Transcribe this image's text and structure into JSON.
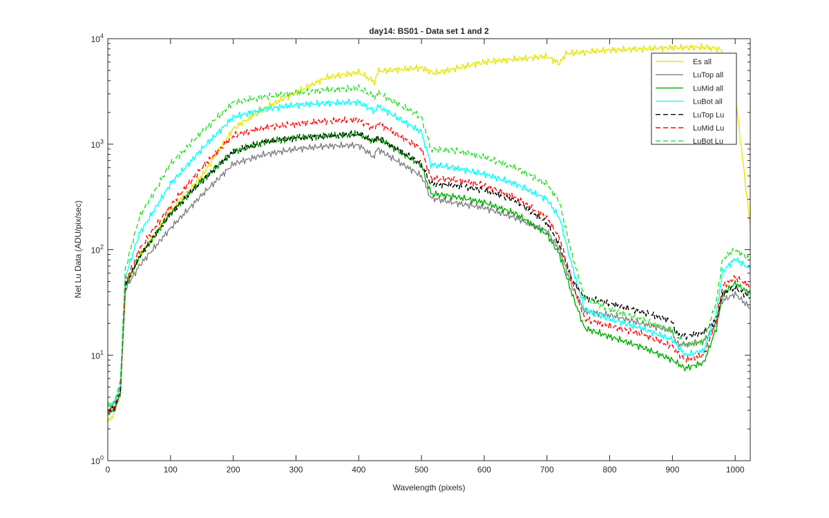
{
  "chart_data": {
    "type": "line",
    "title": "day14: BS01 - Data set 1 and 2",
    "xlabel": "Wavelength (pixels)",
    "ylabel": "Net Lu Data (ADU/pix/sec)",
    "xlim": [
      0,
      1024
    ],
    "ylim": [
      1,
      10000
    ],
    "yscale": "log",
    "grid": false,
    "legend_position": "top-right",
    "x_ticks": [
      0,
      100,
      200,
      300,
      400,
      500,
      600,
      700,
      800,
      900,
      1000
    ],
    "x_tick_labels": [
      "0",
      "100",
      "200",
      "300",
      "400",
      "500",
      "600",
      "700",
      "800",
      "900",
      "1000"
    ],
    "y_ticks": [
      1,
      10,
      100,
      1000,
      10000
    ],
    "y_tick_labels": [
      {
        "base": "10",
        "exp": "0"
      },
      {
        "base": "10",
        "exp": "1"
      },
      {
        "base": "10",
        "exp": "2"
      },
      {
        "base": "10",
        "exp": "3"
      },
      {
        "base": "10",
        "exp": "4"
      }
    ],
    "series": [
      {
        "name": "Es  all",
        "color": "#e6e600",
        "dash": "solid",
        "points": [
          [
            0,
            2.3
          ],
          [
            10,
            2.8
          ],
          [
            20,
            4.5
          ],
          [
            28,
            45
          ],
          [
            50,
            85
          ],
          [
            100,
            230
          ],
          [
            150,
            500
          ],
          [
            200,
            1400
          ],
          [
            250,
            2200
          ],
          [
            300,
            3100
          ],
          [
            350,
            4300
          ],
          [
            400,
            4800
          ],
          [
            425,
            3900
          ],
          [
            430,
            4900
          ],
          [
            500,
            5300
          ],
          [
            520,
            4700
          ],
          [
            600,
            6000
          ],
          [
            700,
            6800
          ],
          [
            720,
            5800
          ],
          [
            730,
            7200
          ],
          [
            800,
            7800
          ],
          [
            900,
            8200
          ],
          [
            950,
            8300
          ],
          [
            975,
            8000
          ],
          [
            990,
            6000
          ],
          [
            1000,
            3000
          ],
          [
            1010,
            900
          ],
          [
            1024,
            170
          ]
        ]
      },
      {
        "name": "LuTop  all",
        "color": "#808080",
        "dash": "solid",
        "points": [
          [
            0,
            2.8
          ],
          [
            10,
            3.0
          ],
          [
            20,
            4.2
          ],
          [
            28,
            42
          ],
          [
            50,
            70
          ],
          [
            100,
            160
          ],
          [
            150,
            330
          ],
          [
            200,
            650
          ],
          [
            250,
            800
          ],
          [
            300,
            900
          ],
          [
            350,
            960
          ],
          [
            400,
            980
          ],
          [
            425,
            750
          ],
          [
            430,
            900
          ],
          [
            500,
            500
          ],
          [
            515,
            310
          ],
          [
            550,
            280
          ],
          [
            600,
            250
          ],
          [
            650,
            200
          ],
          [
            700,
            150
          ],
          [
            720,
            100
          ],
          [
            740,
            45
          ],
          [
            760,
            26
          ],
          [
            800,
            24
          ],
          [
            850,
            20
          ],
          [
            900,
            17
          ],
          [
            905,
            13
          ],
          [
            920,
            12.5
          ],
          [
            950,
            13.5
          ],
          [
            970,
            20
          ],
          [
            980,
            33
          ],
          [
            1000,
            38
          ],
          [
            1024,
            28
          ]
        ]
      },
      {
        "name": "LuMid  all",
        "color": "#00aa00",
        "dash": "solid",
        "points": [
          [
            0,
            2.9
          ],
          [
            10,
            3.0
          ],
          [
            20,
            4.5
          ],
          [
            28,
            45
          ],
          [
            50,
            85
          ],
          [
            100,
            220
          ],
          [
            150,
            450
          ],
          [
            200,
            850
          ],
          [
            250,
            1050
          ],
          [
            300,
            1150
          ],
          [
            350,
            1200
          ],
          [
            400,
            1250
          ],
          [
            425,
            1050
          ],
          [
            430,
            1150
          ],
          [
            500,
            630
          ],
          [
            515,
            340
          ],
          [
            550,
            320
          ],
          [
            600,
            280
          ],
          [
            650,
            220
          ],
          [
            700,
            140
          ],
          [
            720,
            90
          ],
          [
            740,
            38
          ],
          [
            760,
            18
          ],
          [
            800,
            15
          ],
          [
            850,
            12
          ],
          [
            900,
            9
          ],
          [
            920,
            7.5
          ],
          [
            950,
            8.5
          ],
          [
            970,
            18
          ],
          [
            980,
            38
          ],
          [
            1000,
            48
          ],
          [
            1024,
            38
          ]
        ]
      },
      {
        "name": "LuBot  all",
        "color": "#00ffff",
        "dash": "solid",
        "points": [
          [
            0,
            3.2
          ],
          [
            10,
            3.5
          ],
          [
            20,
            5
          ],
          [
            28,
            55
          ],
          [
            50,
            140
          ],
          [
            100,
            420
          ],
          [
            150,
            900
          ],
          [
            200,
            1800
          ],
          [
            250,
            2150
          ],
          [
            300,
            2350
          ],
          [
            350,
            2450
          ],
          [
            400,
            2500
          ],
          [
            425,
            2050
          ],
          [
            430,
            2300
          ],
          [
            500,
            1300
          ],
          [
            515,
            640
          ],
          [
            550,
            600
          ],
          [
            600,
            520
          ],
          [
            650,
            420
          ],
          [
            700,
            300
          ],
          [
            720,
            200
          ],
          [
            740,
            70
          ],
          [
            760,
            27
          ],
          [
            800,
            22
          ],
          [
            850,
            18
          ],
          [
            900,
            14
          ],
          [
            920,
            10
          ],
          [
            950,
            11
          ],
          [
            970,
            25
          ],
          [
            980,
            62
          ],
          [
            1000,
            82
          ],
          [
            1024,
            65
          ]
        ]
      },
      {
        "name": "LuTop  Lu",
        "color": "#000000",
        "dash": "dashed",
        "points": [
          [
            0,
            3
          ],
          [
            10,
            3.1
          ],
          [
            20,
            4.5
          ],
          [
            28,
            45
          ],
          [
            50,
            85
          ],
          [
            100,
            220
          ],
          [
            150,
            450
          ],
          [
            200,
            850
          ],
          [
            250,
            1050
          ],
          [
            300,
            1150
          ],
          [
            350,
            1200
          ],
          [
            400,
            1250
          ],
          [
            425,
            1050
          ],
          [
            430,
            1150
          ],
          [
            500,
            650
          ],
          [
            515,
            420
          ],
          [
            550,
            410
          ],
          [
            600,
            370
          ],
          [
            650,
            290
          ],
          [
            700,
            180
          ],
          [
            720,
            110
          ],
          [
            740,
            52
          ],
          [
            760,
            35
          ],
          [
            800,
            31
          ],
          [
            850,
            26
          ],
          [
            900,
            21
          ],
          [
            905,
            16
          ],
          [
            920,
            15
          ],
          [
            950,
            16.5
          ],
          [
            970,
            22
          ],
          [
            980,
            38
          ],
          [
            1000,
            44
          ],
          [
            1024,
            35
          ]
        ]
      },
      {
        "name": "LuMid  Lu",
        "color": "#ff0000",
        "dash": "dashed",
        "points": [
          [
            0,
            3
          ],
          [
            10,
            3.2
          ],
          [
            20,
            4.8
          ],
          [
            28,
            48
          ],
          [
            50,
            100
          ],
          [
            100,
            260
          ],
          [
            150,
            600
          ],
          [
            200,
            1200
          ],
          [
            250,
            1450
          ],
          [
            300,
            1550
          ],
          [
            350,
            1650
          ],
          [
            400,
            1700
          ],
          [
            425,
            1400
          ],
          [
            430,
            1600
          ],
          [
            500,
            900
          ],
          [
            515,
            470
          ],
          [
            550,
            460
          ],
          [
            600,
            410
          ],
          [
            650,
            310
          ],
          [
            700,
            200
          ],
          [
            720,
            130
          ],
          [
            740,
            50
          ],
          [
            760,
            22
          ],
          [
            800,
            19
          ],
          [
            850,
            16
          ],
          [
            900,
            12
          ],
          [
            920,
            9
          ],
          [
            950,
            10
          ],
          [
            970,
            21
          ],
          [
            980,
            45
          ],
          [
            1000,
            55
          ],
          [
            1024,
            45
          ]
        ]
      },
      {
        "name": "LuBot  Lu",
        "color": "#22dd22",
        "dash": "dashed",
        "points": [
          [
            0,
            3.3
          ],
          [
            10,
            3.6
          ],
          [
            20,
            5.5
          ],
          [
            28,
            65
          ],
          [
            50,
            200
          ],
          [
            100,
            650
          ],
          [
            150,
            1300
          ],
          [
            200,
            2500
          ],
          [
            250,
            2800
          ],
          [
            300,
            3050
          ],
          [
            350,
            3300
          ],
          [
            400,
            3400
          ],
          [
            425,
            2800
          ],
          [
            430,
            3100
          ],
          [
            500,
            1800
          ],
          [
            515,
            900
          ],
          [
            550,
            880
          ],
          [
            600,
            750
          ],
          [
            650,
            600
          ],
          [
            700,
            420
          ],
          [
            720,
            280
          ],
          [
            740,
            90
          ],
          [
            760,
            35
          ],
          [
            800,
            27
          ],
          [
            850,
            22
          ],
          [
            900,
            17
          ],
          [
            920,
            12.5
          ],
          [
            950,
            13.5
          ],
          [
            970,
            32
          ],
          [
            980,
            82
          ],
          [
            1000,
            100
          ],
          [
            1024,
            80
          ]
        ]
      }
    ]
  }
}
